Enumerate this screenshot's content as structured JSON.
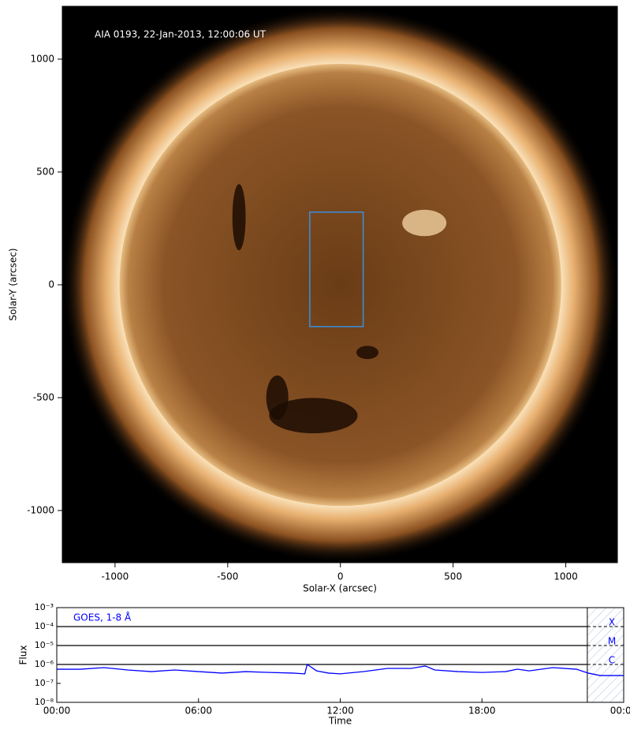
{
  "chart_data": [
    {
      "type": "image",
      "annotation": "AIA 0193, 22-Jan-2013, 12:00:06 UT",
      "xlabel": "Solar-X (arcsec)",
      "ylabel": "Solar-Y (arcsec)",
      "xlim": [
        -1234,
        1229
      ],
      "ylim": [
        -1231,
        1234
      ],
      "xticks": [
        -1000,
        -500,
        0,
        500,
        1000
      ],
      "yticks": [
        -1000,
        -500,
        0,
        500,
        1000
      ],
      "box": {
        "x": [
          -136,
          101
        ],
        "y": [
          -185,
          322
        ],
        "color": "#3a8fe0"
      }
    },
    {
      "type": "line",
      "xlabel": "Time",
      "ylabel": "Flux",
      "log_y": true,
      "xlim": [
        0,
        24
      ],
      "xticks": [
        {
          "value": 0,
          "label": "00:00"
        },
        {
          "value": 6,
          "label": "06:00"
        },
        {
          "value": 12,
          "label": "12:00"
        },
        {
          "value": 18,
          "label": "18:00"
        },
        {
          "value": 24,
          "label": "00:00"
        }
      ],
      "ylim": [
        1e-08,
        0.001
      ],
      "yticks": [
        {
          "value": 1e-08,
          "label": "10⁻⁸"
        },
        {
          "value": 1e-07,
          "label": "10⁻⁷"
        },
        {
          "value": 1e-06,
          "label": "10⁻⁶"
        },
        {
          "value": 1e-05,
          "label": "10⁻⁵"
        },
        {
          "value": 0.0001,
          "label": "10⁻⁴"
        },
        {
          "value": 0.001,
          "label": "10⁻³"
        }
      ],
      "x": [
        0,
        1,
        2,
        3,
        4,
        5,
        6,
        7,
        8,
        9,
        10,
        10.5,
        10.6,
        11,
        11.5,
        12,
        13,
        14,
        15,
        15.6,
        16,
        17,
        18,
        19,
        19.5,
        20,
        21,
        22,
        22.5,
        23,
        24
      ],
      "series": [
        {
          "name": "GOES, 1-8 Å",
          "color": "#0000ff",
          "values": [
            5.6e-07,
            5.6e-07,
            6.8e-07,
            5.1e-07,
            4.2e-07,
            5.1e-07,
            4.2e-07,
            3.5e-07,
            4.2e-07,
            3.8e-07,
            3.5e-07,
            3.2e-07,
            1e-06,
            4.6e-07,
            3.5e-07,
            3.2e-07,
            4.2e-07,
            6.2e-07,
            6.2e-07,
            8.3e-07,
            5.1e-07,
            4.2e-07,
            3.8e-07,
            4.2e-07,
            5.6e-07,
            4.6e-07,
            6.8e-07,
            5.6e-07,
            3.5e-07,
            2.6e-07,
            2.6e-07
          ]
        }
      ],
      "flare_classes": [
        {
          "label": "X",
          "value": 0.0001
        },
        {
          "label": "M",
          "value": 1e-05
        },
        {
          "label": "C",
          "value": 1e-06
        }
      ],
      "shaded_xlim": [
        22.46,
        24
      ]
    }
  ]
}
